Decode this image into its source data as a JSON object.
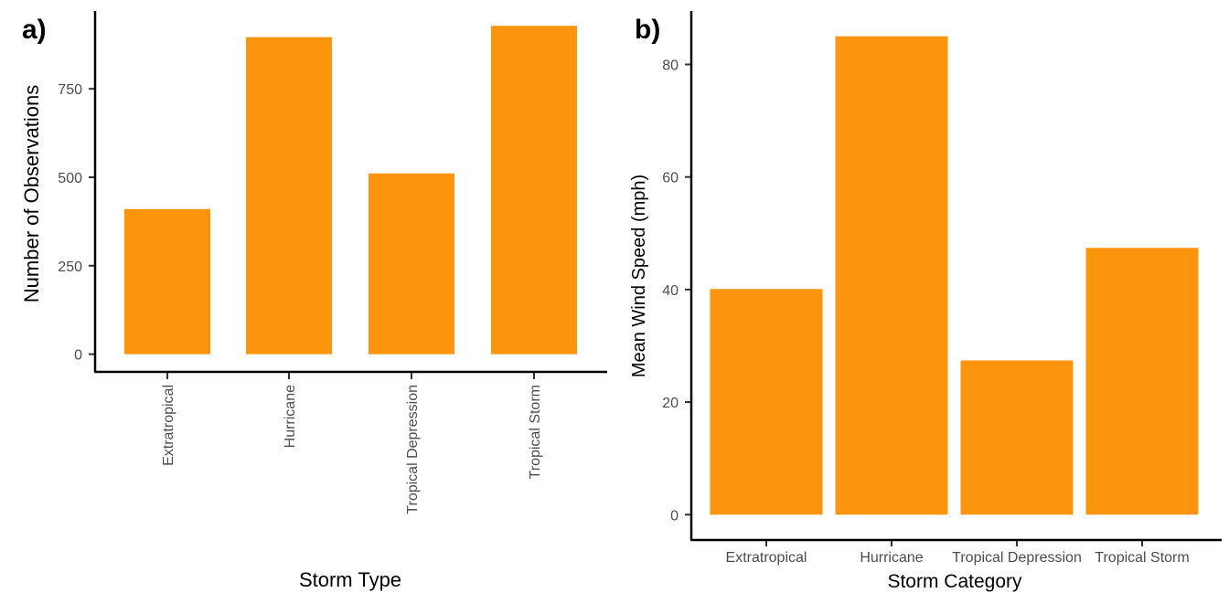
{
  "colors": {
    "bar": "#FC950D",
    "axis": "#000000",
    "tick_text": "#4d4d4d"
  },
  "chart_data": [
    {
      "panel_label": "a)",
      "type": "bar",
      "categories": [
        "Extratropical",
        "Hurricane",
        "Tropical Depression",
        "Tropical Storm"
      ],
      "values": [
        410,
        896,
        511,
        928
      ],
      "xlabel": "Storm Type",
      "ylabel": "Number of Observations",
      "yticks": [
        0,
        250,
        500,
        750
      ],
      "ylim": [
        -50,
        970
      ],
      "x_tick_labels_rotated": true,
      "grid": false,
      "legend": "none"
    },
    {
      "panel_label": "b)",
      "type": "bar",
      "categories": [
        "Extratropical",
        "Hurricane",
        "Tropical Depression",
        "Tropical Storm"
      ],
      "values": [
        40.1,
        85,
        27.4,
        47.4
      ],
      "xlabel": "Storm Category",
      "ylabel": "Mean Wind Speed (mph)",
      "yticks": [
        0,
        20,
        40,
        60,
        80
      ],
      "ylim": [
        -4.5,
        89.5
      ],
      "x_tick_labels_rotated": false,
      "grid": false,
      "legend": "none"
    }
  ]
}
